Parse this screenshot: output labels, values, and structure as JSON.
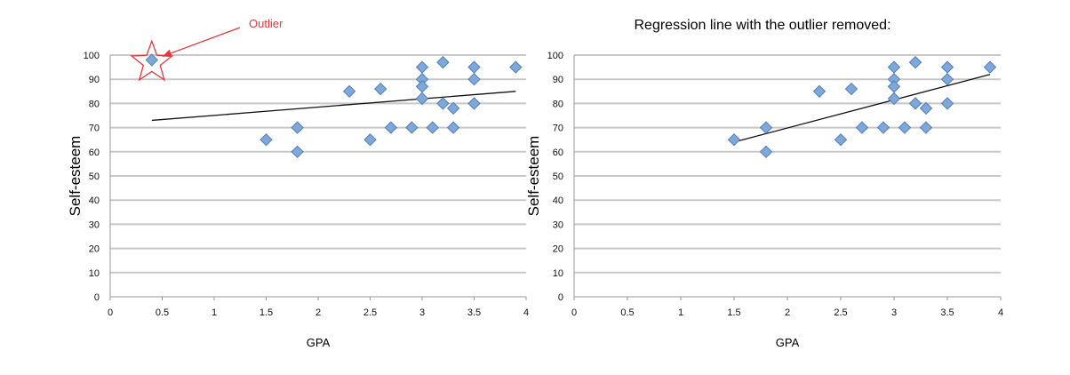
{
  "chart_data": [
    {
      "type": "scatter",
      "title": "",
      "xlabel": "GPA",
      "ylabel": "Self-esteem",
      "xlim": [
        0,
        4
      ],
      "ylim": [
        0,
        100
      ],
      "x_ticks": [
        "0",
        "0.5",
        "1",
        "1.5",
        "2",
        "2.5",
        "3",
        "3.5",
        "4"
      ],
      "y_ticks": [
        "0",
        "10",
        "20",
        "30",
        "40",
        "50",
        "60",
        "70",
        "80",
        "90",
        "100"
      ],
      "grid": true,
      "points": [
        {
          "x": 0.4,
          "y": 98
        },
        {
          "x": 1.5,
          "y": 65
        },
        {
          "x": 1.8,
          "y": 70
        },
        {
          "x": 1.8,
          "y": 60
        },
        {
          "x": 2.3,
          "y": 85
        },
        {
          "x": 2.5,
          "y": 65
        },
        {
          "x": 2.6,
          "y": 86
        },
        {
          "x": 2.7,
          "y": 70
        },
        {
          "x": 2.9,
          "y": 70
        },
        {
          "x": 3.0,
          "y": 95
        },
        {
          "x": 3.0,
          "y": 90
        },
        {
          "x": 3.0,
          "y": 87
        },
        {
          "x": 3.0,
          "y": 82
        },
        {
          "x": 3.1,
          "y": 70
        },
        {
          "x": 3.2,
          "y": 97
        },
        {
          "x": 3.2,
          "y": 80
        },
        {
          "x": 3.3,
          "y": 78
        },
        {
          "x": 3.3,
          "y": 70
        },
        {
          "x": 3.5,
          "y": 95
        },
        {
          "x": 3.5,
          "y": 90
        },
        {
          "x": 3.5,
          "y": 80
        },
        {
          "x": 3.9,
          "y": 95
        }
      ],
      "regression_line": {
        "x": [
          0.4,
          3.9
        ],
        "y": [
          73,
          85
        ]
      },
      "annotation": {
        "text": "Outlier",
        "color": "#e8363a",
        "target": {
          "x": 0.4,
          "y": 98
        }
      }
    },
    {
      "type": "scatter",
      "title": "Regression line with the outlier removed:",
      "xlabel": "GPA",
      "ylabel": "Self-esteem",
      "xlim": [
        0,
        4
      ],
      "ylim": [
        0,
        100
      ],
      "x_ticks": [
        "0",
        "0.5",
        "1",
        "1.5",
        "2",
        "2.5",
        "3",
        "3.5",
        "4"
      ],
      "y_ticks": [
        "0",
        "10",
        "20",
        "30",
        "40",
        "50",
        "60",
        "70",
        "80",
        "90",
        "100"
      ],
      "grid": true,
      "points": [
        {
          "x": 1.5,
          "y": 65
        },
        {
          "x": 1.8,
          "y": 70
        },
        {
          "x": 1.8,
          "y": 60
        },
        {
          "x": 2.3,
          "y": 85
        },
        {
          "x": 2.5,
          "y": 65
        },
        {
          "x": 2.6,
          "y": 86
        },
        {
          "x": 2.7,
          "y": 70
        },
        {
          "x": 2.9,
          "y": 70
        },
        {
          "x": 3.0,
          "y": 95
        },
        {
          "x": 3.0,
          "y": 90
        },
        {
          "x": 3.0,
          "y": 87
        },
        {
          "x": 3.0,
          "y": 82
        },
        {
          "x": 3.1,
          "y": 70
        },
        {
          "x": 3.2,
          "y": 97
        },
        {
          "x": 3.2,
          "y": 80
        },
        {
          "x": 3.3,
          "y": 78
        },
        {
          "x": 3.3,
          "y": 70
        },
        {
          "x": 3.5,
          "y": 95
        },
        {
          "x": 3.5,
          "y": 90
        },
        {
          "x": 3.5,
          "y": 80
        },
        {
          "x": 3.9,
          "y": 95
        }
      ],
      "regression_line": {
        "x": [
          1.5,
          3.9
        ],
        "y": [
          64,
          92
        ]
      }
    }
  ]
}
